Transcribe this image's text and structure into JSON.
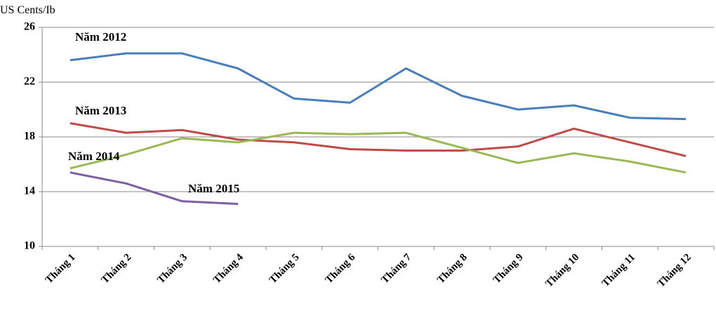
{
  "chart_data": {
    "type": "line",
    "y_label": "US Cents/Ib",
    "categories": [
      "Tháng 1",
      "Tháng 2",
      "Tháng 3",
      "Tháng 4",
      "Tháng 5",
      "Tháng 6",
      "Tháng 7",
      "Tháng 8",
      "Tháng 9",
      "Tháng 10",
      "Tháng 11",
      "Tháng 12"
    ],
    "series": [
      {
        "name": "Năm 2012",
        "color": "#4a7ebb",
        "values": [
          23.6,
          24.1,
          24.1,
          23.0,
          20.8,
          20.5,
          23.0,
          21.0,
          20.0,
          20.3,
          19.4,
          19.3
        ]
      },
      {
        "name": "Năm 2013",
        "color": "#be4b48",
        "values": [
          19.0,
          18.3,
          18.5,
          17.8,
          17.6,
          17.1,
          17.0,
          17.0,
          17.3,
          18.6,
          17.6,
          16.6
        ]
      },
      {
        "name": "Năm 2014",
        "color": "#98b954",
        "values": [
          15.7,
          16.7,
          17.9,
          17.6,
          18.3,
          18.2,
          18.3,
          17.2,
          16.1,
          16.8,
          16.2,
          15.4
        ]
      },
      {
        "name": "Năm 2015",
        "color": "#7d60a0",
        "values": [
          15.4,
          14.6,
          13.3,
          13.1,
          null,
          null,
          null,
          null,
          null,
          null,
          null,
          null
        ]
      }
    ],
    "ylim": [
      10,
      26
    ],
    "yticks": [
      10,
      14,
      18,
      22,
      26
    ],
    "grid": true
  }
}
